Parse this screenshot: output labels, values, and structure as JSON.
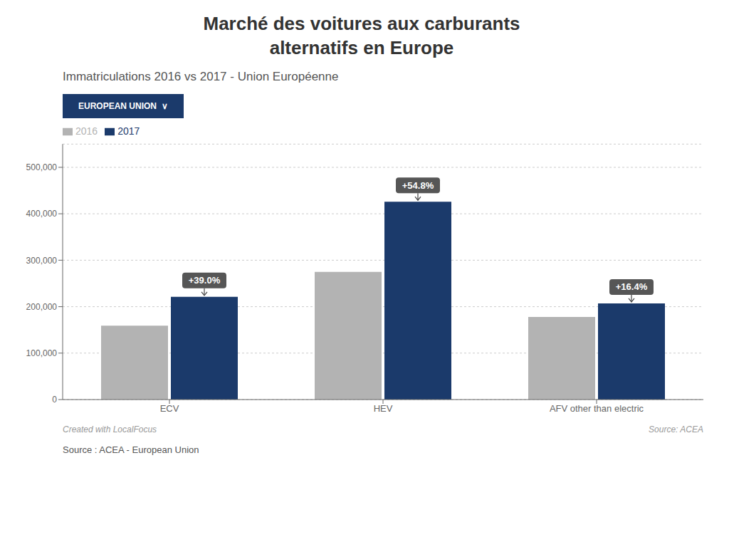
{
  "chart_data": {
    "type": "bar",
    "title": "Marché des voitures aux carburants\nalternatifs en Europe",
    "subtitle": "Immatriculations 2016 vs 2017 - Union Européenne",
    "button": "EUROPEAN UNION  ∨",
    "categories": [
      "ECV",
      "HEV",
      "AFV other than electric"
    ],
    "series": [
      {
        "name": "2016",
        "color": "#b3b3b3",
        "values": [
          159000,
          275000,
          178000
        ]
      },
      {
        "name": "2017",
        "color": "#1b3a6b",
        "values": [
          221000,
          426000,
          207000
        ]
      }
    ],
    "annotations": [
      {
        "series": "2017",
        "category": "ECV",
        "text": "+39.0%"
      },
      {
        "series": "2017",
        "category": "HEV",
        "text": "+54.8%"
      },
      {
        "series": "2017",
        "category": "AFV other than electric",
        "text": "+16.4%"
      }
    ],
    "ylim": [
      0,
      550000
    ],
    "yticks": [
      0,
      {
        "value": 100000,
        "label": "100,000"
      },
      {
        "value": 200000,
        "label": "200,000"
      },
      {
        "value": 300000,
        "label": "300,000"
      },
      {
        "value": 400000,
        "label": "400,000"
      },
      {
        "value": 500000,
        "label": "500,000"
      }
    ],
    "grid": true,
    "legend": "top-left",
    "footer_left": "Created with LocalFocus",
    "footer_right": "Source: ACEA",
    "source": "Source : ACEA - European Union"
  }
}
